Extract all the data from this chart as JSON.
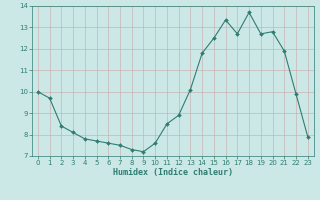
{
  "x": [
    0,
    1,
    2,
    3,
    4,
    5,
    6,
    7,
    8,
    9,
    10,
    11,
    12,
    13,
    14,
    15,
    16,
    17,
    18,
    19,
    20,
    21,
    22,
    23
  ],
  "y": [
    10.0,
    9.7,
    8.4,
    8.1,
    7.8,
    7.7,
    7.6,
    7.5,
    7.3,
    7.2,
    7.6,
    8.5,
    8.9,
    10.1,
    11.8,
    12.5,
    13.35,
    12.7,
    13.7,
    12.7,
    12.8,
    11.9,
    9.9,
    7.9
  ],
  "xlabel": "Humidex (Indice chaleur)",
  "xlim": [
    -0.5,
    23.5
  ],
  "ylim": [
    7,
    14
  ],
  "yticks": [
    7,
    8,
    9,
    10,
    11,
    12,
    13,
    14
  ],
  "xticks": [
    0,
    1,
    2,
    3,
    4,
    5,
    6,
    7,
    8,
    9,
    10,
    11,
    12,
    13,
    14,
    15,
    16,
    17,
    18,
    19,
    20,
    21,
    22,
    23
  ],
  "line_color": "#2e7d72",
  "bg_color": "#cce8e6",
  "grid_major_color": "#c4a0a0",
  "grid_minor_color": "#cce8e6"
}
